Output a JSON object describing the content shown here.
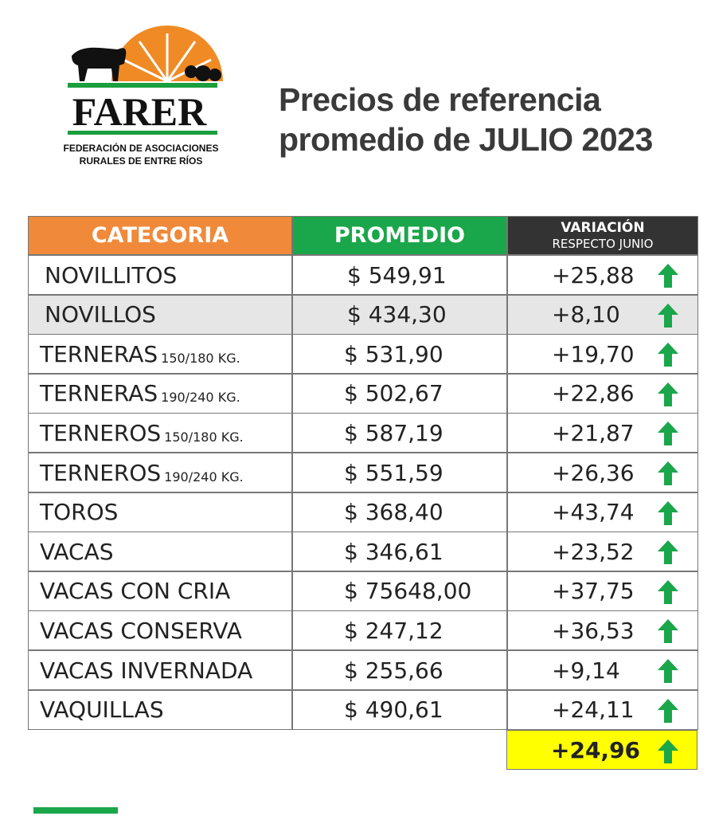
{
  "logo": {
    "name": "FARER",
    "line1": "FEDERACIÓN DE ASOCIACIONES",
    "line2": "RURALES DE ENTRE RÍOS"
  },
  "header": {
    "title": [
      "Precios de referencia",
      "promedio de JULIO 2023"
    ]
  },
  "table": {
    "headers": [
      "CATEGORIA",
      "PROMEDIO",
      "VARIACIÓN",
      "RESPECTO JUNIO"
    ],
    "rows": [
      {
        "category": "NOVILLITOS",
        "price": "$ 549,91",
        "variation": "+25,88"
      },
      {
        "category": "NOVILLOS",
        "price": "$ 434,30",
        "variation": "+8,10"
      },
      {
        "category": "TERNERAS",
        "sub": "150/180 KG.",
        "price": "$ 531,90",
        "variation": "+19,70"
      },
      {
        "category": "TERNERAS",
        "sub": "190/240 KG.",
        "price": "$ 502,67",
        "variation": "+22,86"
      },
      {
        "category": "TERNEROS",
        "sub": "150/180 KG.",
        "price": "$ 587,19",
        "variation": "+21,87"
      },
      {
        "category": "TERNEROS",
        "sub": "190/240 KG.",
        "price": "$ 551,59",
        "variation": "+26,36"
      },
      {
        "category": "TOROS",
        "price": "$ 368,40",
        "variation": "+43,74"
      },
      {
        "category": "VACAS",
        "price": "$ 346,61",
        "variation": "+23,52"
      },
      {
        "category": "VACAS CON CRIA",
        "price": "$ 75648,00",
        "variation": "+37,75"
      },
      {
        "category": "VACAS CONSERVA",
        "price": "$ 247,12",
        "variation": "+36,53"
      },
      {
        "category": "VACAS INVERNADA",
        "price": "$ 255,66",
        "variation": "+9,14"
      },
      {
        "category": "VAQUILLAS",
        "price": "$ 490,61",
        "variation": "+24,11"
      }
    ],
    "total": "+24,96"
  }
}
